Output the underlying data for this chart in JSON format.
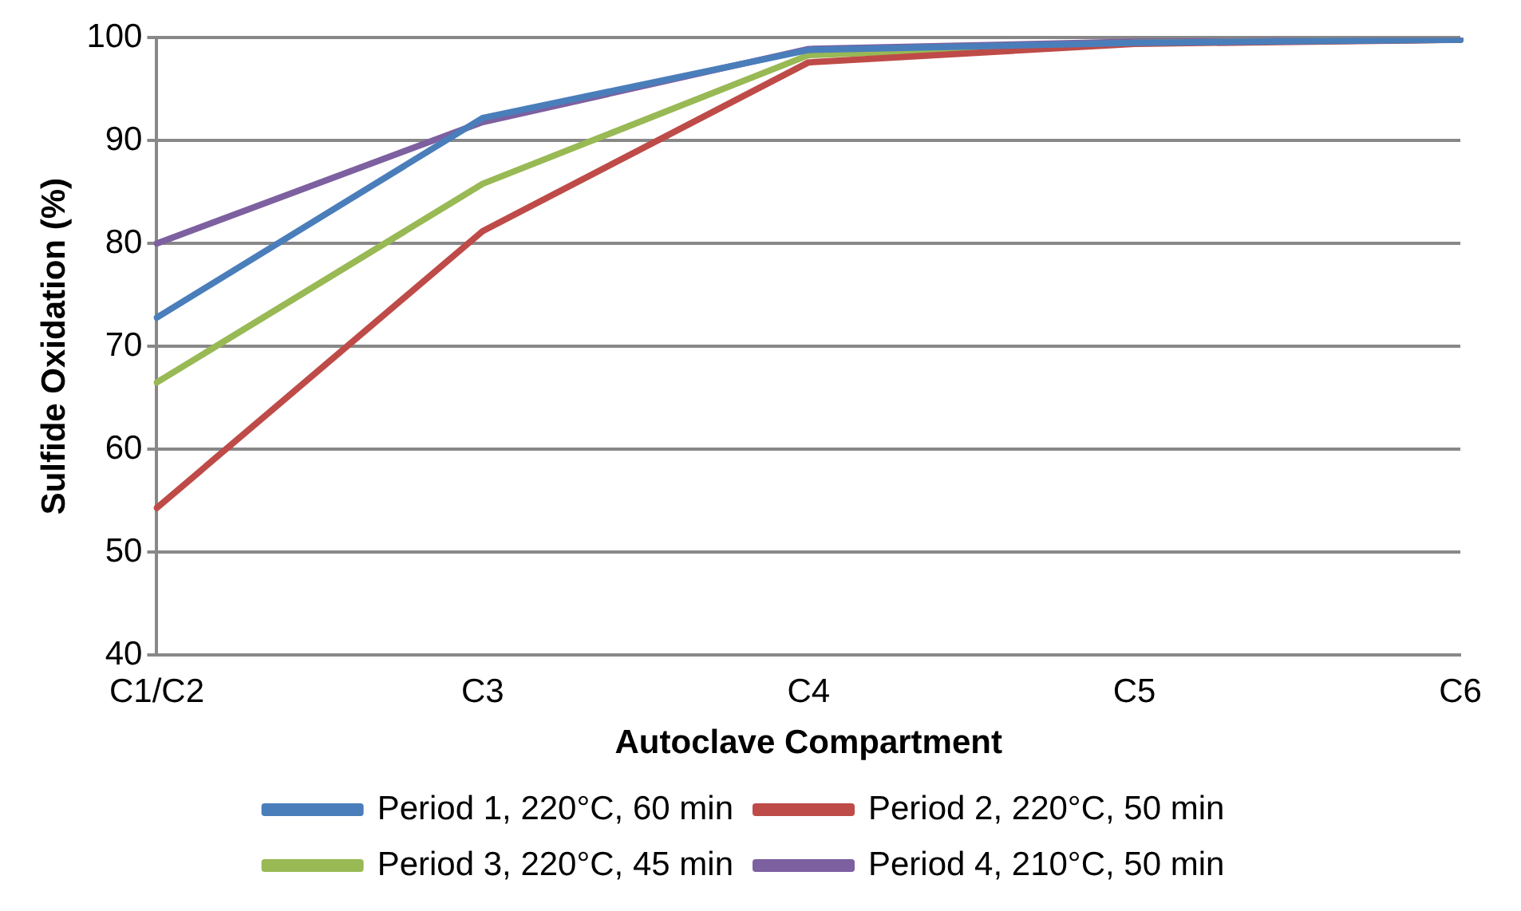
{
  "chart_data": {
    "type": "line",
    "xlabel": "Autoclave Compartment",
    "ylabel": "Sulfide Oxidation (%)",
    "categories": [
      "C1/C2",
      "C3",
      "C4",
      "C5",
      "C6"
    ],
    "series": [
      {
        "name": "Period 1, 220°C, 60 min",
        "color": "#4a7ebb",
        "values": [
          72.8,
          92.2,
          98.8,
          99.5,
          99.8
        ]
      },
      {
        "name": "Period 2, 220°C, 50 min",
        "color": "#be4b48",
        "values": [
          54.3,
          81.2,
          97.6,
          99.4,
          99.8
        ]
      },
      {
        "name": "Period 3, 220°C, 45 min",
        "color": "#98b954",
        "values": [
          66.5,
          85.8,
          98.3,
          99.5,
          99.8
        ]
      },
      {
        "name": "Period 4, 210°C, 50 min",
        "color": "#7d60a0",
        "values": [
          80,
          91.8,
          98.9,
          99.6,
          99.8
        ]
      }
    ],
    "ylim": [
      40,
      100
    ],
    "yticks": [
      40,
      50,
      60,
      70,
      80,
      90,
      100
    ],
    "grid": "y",
    "legend": "bottom",
    "marker": "none",
    "line_style": "solid"
  }
}
